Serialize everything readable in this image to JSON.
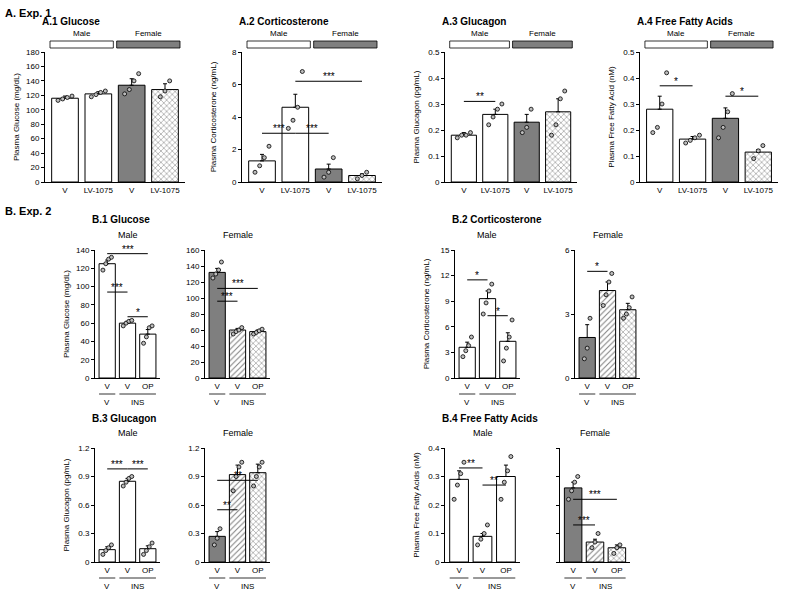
{
  "chart_data": [
    {
      "type": "bar",
      "section": "A. Exp. 1",
      "panel": "A.1 Glucose",
      "y_label": "Plasma Glucose (mg/dL)",
      "categories": [
        "V",
        "LV-1075",
        "V",
        "LV-1075"
      ],
      "group_labels": [
        "Male",
        "Male",
        "Female",
        "Female"
      ],
      "values": [
        116,
        122,
        134,
        128
      ],
      "errors": [
        3,
        3,
        9,
        8
      ],
      "points": [
        [
          113,
          115,
          117,
          119
        ],
        [
          118,
          121,
          124,
          126
        ],
        [
          122,
          128,
          140,
          150
        ],
        [
          118,
          126,
          140
        ]
      ],
      "colors": [
        "#ffffff",
        "#ffffff",
        "#7f7f7f",
        "#7f7f7f"
      ],
      "ylim": [
        0,
        180
      ],
      "yticks": [
        0,
        20,
        40,
        60,
        80,
        100,
        120,
        140,
        160,
        180
      ],
      "grid": false
    },
    {
      "type": "bar",
      "section": "A. Exp. 1",
      "panel": "A.2 Corticosterone",
      "y_label": "Plasma Corticosterone (ng/mL)",
      "categories": [
        "V",
        "LV-1075",
        "V",
        "LV-1075"
      ],
      "group_labels": [
        "Male",
        "Male",
        "Female",
        "Female"
      ],
      "values": [
        1.3,
        4.6,
        0.8,
        0.4
      ],
      "errors": [
        0.4,
        0.8,
        0.3,
        0.1
      ],
      "points": [
        [
          0.6,
          1.0,
          1.5,
          2.2
        ],
        [
          3.3,
          3.8,
          4.6,
          6.8
        ],
        [
          0.3,
          0.6,
          1.5
        ],
        [
          0.2,
          0.4,
          0.6
        ]
      ],
      "colors": [
        "#ffffff",
        "#ffffff",
        "#7f7f7f",
        "#7f7f7f"
      ],
      "ylim": [
        0,
        8
      ],
      "yticks": [
        0,
        2,
        4,
        6,
        8
      ],
      "grid": false,
      "significance": [
        {
          "from": 0,
          "to": 1,
          "y": 3,
          "label": "***"
        },
        {
          "from": 1,
          "to": 2,
          "y": 3,
          "label": "***"
        },
        {
          "from": 1,
          "to": 3,
          "y": 6.2,
          "label": "***"
        }
      ]
    },
    {
      "type": "bar",
      "section": "A. Exp. 1",
      "panel": "A.3 Glucagon",
      "y_label": "Plasma Glucagon (pg/mL)",
      "categories": [
        "V",
        "LV-1075",
        "V",
        "LV-1075"
      ],
      "group_labels": [
        "Male",
        "Male",
        "Female",
        "Female"
      ],
      "values": [
        0.18,
        0.26,
        0.23,
        0.27
      ],
      "errors": [
        0.01,
        0.02,
        0.03,
        0.05
      ],
      "points": [
        [
          0.17,
          0.18,
          0.18,
          0.19
        ],
        [
          0.22,
          0.25,
          0.28,
          0.3
        ],
        [
          0.19,
          0.21,
          0.28
        ],
        [
          0.18,
          0.22,
          0.32,
          0.35
        ]
      ],
      "colors": [
        "#ffffff",
        "#ffffff",
        "#7f7f7f",
        "#7f7f7f"
      ],
      "ylim": [
        0,
        0.5
      ],
      "yticks": [
        0,
        0.1,
        0.2,
        0.3,
        0.4,
        0.5
      ],
      "grid": false,
      "significance": [
        {
          "from": 0,
          "to": 1,
          "y": 0.31,
          "label": "**"
        }
      ]
    },
    {
      "type": "bar",
      "section": "A. Exp. 1",
      "panel": "A.4 Free Fatty Acids",
      "y_label": "Plasma Free Fatty Acid (nM)",
      "categories": [
        "V",
        "LV-1075",
        "V",
        "LV-1075"
      ],
      "group_labels": [
        "Male",
        "Male",
        "Female",
        "Female"
      ],
      "values": [
        0.28,
        0.165,
        0.245,
        0.115
      ],
      "errors": [
        0.05,
        0.01,
        0.04,
        0.01
      ],
      "points": [
        [
          0.19,
          0.21,
          0.3,
          0.42
        ],
        [
          0.15,
          0.16,
          0.17,
          0.18
        ],
        [
          0.17,
          0.21,
          0.27,
          0.34
        ],
        [
          0.09,
          0.12,
          0.14
        ]
      ],
      "colors": [
        "#ffffff",
        "#ffffff",
        "#7f7f7f",
        "#7f7f7f"
      ],
      "ylim": [
        0,
        0.5
      ],
      "yticks": [
        0,
        0.1,
        0.2,
        0.3,
        0.4,
        0.5
      ],
      "grid": false,
      "significance": [
        {
          "from": 0,
          "to": 1,
          "y": 0.37,
          "label": "*"
        },
        {
          "from": 2,
          "to": 3,
          "y": 0.33,
          "label": "*"
        }
      ]
    },
    {
      "type": "bar",
      "section": "B. Exp. 2",
      "panel": "B.1 Glucose",
      "title": "Male",
      "y_label": "Plasma Glucose (mg/dL)",
      "categories": [
        "V",
        "V",
        "OP"
      ],
      "sublabels": [
        "V",
        "INS",
        "INS"
      ],
      "values": [
        125,
        60,
        48
      ],
      "errors": [
        4,
        2,
        5
      ],
      "points": [
        [
          118,
          125,
          130,
          132
        ],
        [
          57,
          60,
          62,
          63
        ],
        [
          38,
          45,
          55,
          57
        ]
      ],
      "colors": [
        "#ffffff",
        "#ffffff",
        "#ffffff"
      ],
      "ylim": [
        0,
        140
      ],
      "yticks": [
        0,
        20,
        40,
        60,
        80,
        100,
        120,
        140
      ],
      "grid": false,
      "significance": [
        {
          "from": 0,
          "to": 2,
          "y": 136,
          "label": "***"
        },
        {
          "from": 0,
          "to": 1,
          "y": 94,
          "label": "***"
        },
        {
          "from": 1,
          "to": 2,
          "y": 67,
          "label": "*"
        }
      ]
    },
    {
      "type": "bar",
      "section": "B. Exp. 2",
      "panel": "B.1 Glucose",
      "title": "Female",
      "categories": [
        "V",
        "V",
        "OP"
      ],
      "sublabels": [
        "V",
        "INS",
        "INS"
      ],
      "values": [
        132,
        60,
        58
      ],
      "errors": [
        5,
        2,
        2
      ],
      "points": [
        [
          125,
          130,
          135,
          145
        ],
        [
          55,
          58,
          60,
          63
        ],
        [
          55,
          57,
          59,
          61
        ]
      ],
      "colors": [
        "#7f7f7f",
        "#7f7f7f",
        "#7f7f7f"
      ],
      "ylim": [
        0,
        160
      ],
      "yticks": [
        0,
        20,
        40,
        60,
        80,
        100,
        120,
        140,
        160
      ],
      "grid": false,
      "significance": [
        {
          "from": 0,
          "to": 2,
          "y": 112,
          "label": "***"
        },
        {
          "from": 0,
          "to": 1,
          "y": 96,
          "label": "***"
        }
      ]
    },
    {
      "type": "bar",
      "section": "B. Exp. 2",
      "panel": "B.2 Corticosterone",
      "title": "Male",
      "y_label": "Plasma Corticosterone (ng/mL)",
      "categories": [
        "V",
        "V",
        "OP"
      ],
      "sublabels": [
        "V",
        "INS",
        "INS"
      ],
      "values": [
        3.6,
        9.3,
        4.3
      ],
      "errors": [
        0.6,
        0.9,
        1.0
      ],
      "points": [
        [
          2.5,
          3.2,
          3.8,
          4.8
        ],
        [
          7.5,
          8.8,
          10.2,
          11
        ],
        [
          2.0,
          3.5,
          4.8,
          6.8
        ]
      ],
      "colors": [
        "#ffffff",
        "#ffffff",
        "#ffffff"
      ],
      "ylim": [
        0,
        15
      ],
      "yticks": [
        0,
        3,
        6,
        9,
        12,
        15
      ],
      "grid": false,
      "significance": [
        {
          "from": 0,
          "to": 1,
          "y": 11.5,
          "label": "*"
        },
        {
          "from": 1,
          "to": 2,
          "y": 7.3,
          "label": "*"
        }
      ]
    },
    {
      "type": "bar",
      "section": "B. Exp. 2",
      "panel": "B.2 Corticosterone",
      "title": "Female",
      "categories": [
        "V",
        "V",
        "OP"
      ],
      "sublabels": [
        "V",
        "INS",
        "INS"
      ],
      "values": [
        1.9,
        4.1,
        3.2
      ],
      "errors": [
        0.6,
        0.4,
        0.3
      ],
      "points": [
        [
          0.9,
          1.4,
          2.8
        ],
        [
          3.4,
          3.9,
          4.5,
          4.9
        ],
        [
          2.8,
          3.0,
          3.3,
          3.8
        ]
      ],
      "colors": [
        "#7f7f7f",
        "#7f7f7f",
        "#7f7f7f"
      ],
      "ylim": [
        0,
        6
      ],
      "yticks": [
        0,
        3,
        6
      ],
      "grid": false,
      "significance": [
        {
          "from": 0,
          "to": 1,
          "y": 5.0,
          "label": "*"
        }
      ]
    },
    {
      "type": "bar",
      "section": "B. Exp. 2",
      "panel": "B.3 Glucagon",
      "title": "Male",
      "y_label": "Plasma Glucagon (pg/mL)",
      "categories": [
        "V",
        "V",
        "OP"
      ],
      "sublabels": [
        "V",
        "INS",
        "INS"
      ],
      "values": [
        0.13,
        0.85,
        0.14
      ],
      "errors": [
        0.03,
        0.03,
        0.03
      ],
      "points": [
        [
          0.08,
          0.12,
          0.15,
          0.18
        ],
        [
          0.8,
          0.84,
          0.88,
          0.9
        ],
        [
          0.08,
          0.12,
          0.16,
          0.2
        ]
      ],
      "colors": [
        "#ffffff",
        "#ffffff",
        "#ffffff"
      ],
      "ylim": [
        0,
        1.2
      ],
      "yticks": [
        0,
        0.3,
        0.6,
        0.9,
        1.2
      ],
      "grid": false,
      "significance": [
        {
          "from": 0,
          "to": 1,
          "y": 0.98,
          "label": "***"
        },
        {
          "from": 1,
          "to": 2,
          "y": 0.98,
          "label": "***"
        }
      ]
    },
    {
      "type": "bar",
      "section": "B. Exp. 2",
      "panel": "B.3 Glucagon",
      "title": "Female",
      "categories": [
        "V",
        "V",
        "OP"
      ],
      "sublabels": [
        "V",
        "INS",
        "INS"
      ],
      "values": [
        0.27,
        0.92,
        0.94
      ],
      "errors": [
        0.05,
        0.1,
        0.09
      ],
      "points": [
        [
          0.18,
          0.25,
          0.35
        ],
        [
          0.75,
          0.9,
          1.0,
          1.05
        ],
        [
          0.8,
          0.9,
          1.0,
          1.05
        ]
      ],
      "colors": [
        "#7f7f7f",
        "#7f7f7f",
        "#7f7f7f"
      ],
      "ylim": [
        0,
        1.2
      ],
      "yticks": [
        0,
        0.3,
        0.6,
        0.9,
        1.2
      ],
      "grid": false,
      "significance": [
        {
          "from": 0,
          "to": 2,
          "y": 0.86,
          "label": "**"
        },
        {
          "from": 0,
          "to": 1,
          "y": 0.55,
          "label": "**"
        }
      ]
    },
    {
      "type": "bar",
      "section": "B. Exp. 2",
      "panel": "B.4 Free Fatty Acids",
      "title": "Male",
      "y_label": "Plasma Free Fatty Acids (nM)",
      "categories": [
        "V",
        "V",
        "OP"
      ],
      "sublabels": [
        "V",
        "INS",
        "INS"
      ],
      "values": [
        0.29,
        0.09,
        0.3
      ],
      "errors": [
        0.03,
        0.01,
        0.04
      ],
      "points": [
        [
          0.22,
          0.27,
          0.31,
          0.35
        ],
        [
          0.06,
          0.08,
          0.1,
          0.13
        ],
        [
          0.22,
          0.28,
          0.32,
          0.37
        ]
      ],
      "colors": [
        "#ffffff",
        "#ffffff",
        "#ffffff"
      ],
      "ylim": [
        0,
        0.4
      ],
      "yticks": [
        0,
        0.1,
        0.2,
        0.3,
        0.4
      ],
      "grid": false,
      "significance": [
        {
          "from": 0,
          "to": 1,
          "y": 0.33,
          "label": "**"
        },
        {
          "from": 1,
          "to": 2,
          "y": 0.27,
          "label": "**"
        }
      ]
    },
    {
      "type": "bar",
      "section": "B. Exp. 2",
      "panel": "B.4 Free Fatty Acids",
      "title": "Female",
      "categories": [
        "V",
        "V",
        "OP"
      ],
      "sublabels": [
        "V",
        "INS",
        "INS"
      ],
      "values": [
        0.26,
        0.07,
        0.05
      ],
      "errors": [
        0.02,
        0.01,
        0.01
      ],
      "points": [
        [
          0.22,
          0.25,
          0.28,
          0.3
        ],
        [
          0.05,
          0.07,
          0.1
        ],
        [
          0.03,
          0.05,
          0.06
        ]
      ],
      "colors": [
        "#7f7f7f",
        "#7f7f7f",
        "#7f7f7f"
      ],
      "ylim": [
        0,
        0.4
      ],
      "yticks": [
        0,
        0.1,
        0.2,
        0.3,
        0.4
      ],
      "grid": false,
      "tick_labels": "x",
      "significance": [
        {
          "from": 0,
          "to": 2,
          "y": 0.22,
          "label": "***"
        },
        {
          "from": 0,
          "to": 1,
          "y": 0.13,
          "label": "***"
        }
      ]
    }
  ]
}
